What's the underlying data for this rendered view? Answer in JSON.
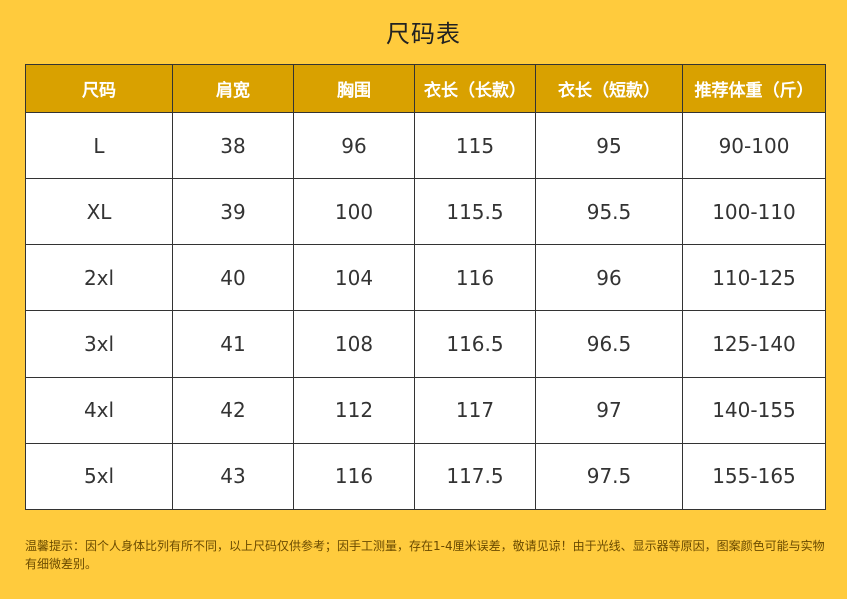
{
  "title": "尺码表",
  "table": {
    "headers": [
      "尺码",
      "肩宽",
      "胸围",
      "衣长（长款）",
      "衣长（短款）",
      "推荐体重（斤）"
    ],
    "rows": [
      [
        "L",
        "38",
        "96",
        "115",
        "95",
        "90-100"
      ],
      [
        "XL",
        "39",
        "100",
        "115.5",
        "95.5",
        "100-110"
      ],
      [
        "2xl",
        "40",
        "104",
        "116",
        "96",
        "110-125"
      ],
      [
        "3xl",
        "41",
        "108",
        "116.5",
        "96.5",
        "125-140"
      ],
      [
        "4xl",
        "42",
        "112",
        "117",
        "97",
        "140-155"
      ],
      [
        "5xl",
        "43",
        "116",
        "117.5",
        "97.5",
        "155-165"
      ]
    ]
  },
  "note": "温馨提示：因个人身体比列有所不同，以上尺码仅供参考；因手工测量，存在1-4厘米误差，敬请见谅！由于光线、显示器等原因，图案颜色可能与实物有细微差别。",
  "colors": {
    "background": "#FFCB3D",
    "header": "#D9A100",
    "header_text": "#FFFFFF",
    "cell": "#FFFFFF"
  }
}
